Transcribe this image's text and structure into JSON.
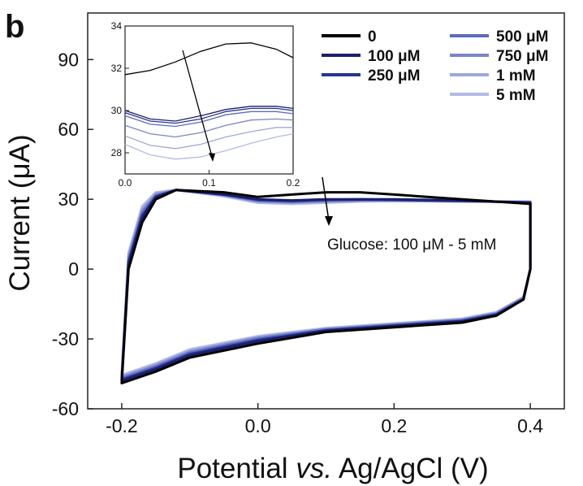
{
  "panel_label": "b",
  "chart_data": {
    "type": "line",
    "main": {
      "xlabel_pre": "Potential ",
      "xlabel_italic": "vs.",
      "xlabel_post": " Ag/AgCl (V)",
      "ylabel": "Current (μA)",
      "xlim": [
        -0.25,
        0.45
      ],
      "ylim": [
        -60,
        110
      ],
      "xticks": [
        -0.2,
        0.0,
        0.2,
        0.4
      ],
      "xticklabels": [
        "-0.2",
        "0.0",
        "0.2",
        "0.4"
      ],
      "yticks": [
        -60,
        -30,
        0,
        30,
        60,
        90
      ],
      "yticklabels": [
        "-60",
        "-30",
        "0",
        "30",
        "60",
        "90"
      ],
      "annotation": "Glucose: 100 μM - 5 mM",
      "legend_placement": "top-right",
      "series": [
        {
          "name": "0",
          "color": "#000000",
          "forward": [
            [
              -0.2,
              -49
            ],
            [
              -0.19,
              0
            ],
            [
              -0.17,
              20
            ],
            [
              -0.15,
              30
            ],
            [
              -0.12,
              34
            ],
            [
              -0.05,
              33
            ],
            [
              0.0,
              31
            ],
            [
              0.05,
              32
            ],
            [
              0.1,
              33
            ],
            [
              0.15,
              33
            ],
            [
              0.2,
              32
            ],
            [
              0.3,
              30
            ],
            [
              0.4,
              28
            ]
          ],
          "reverse": [
            [
              0.4,
              28
            ],
            [
              0.4,
              0
            ],
            [
              0.39,
              -13
            ],
            [
              0.35,
              -20
            ],
            [
              0.3,
              -23
            ],
            [
              0.2,
              -25
            ],
            [
              0.1,
              -27
            ],
            [
              0.0,
              -32
            ],
            [
              -0.1,
              -38
            ],
            [
              -0.15,
              -44
            ],
            [
              -0.2,
              -49
            ]
          ]
        },
        {
          "name": "100 μM",
          "color": "#1a1f6e",
          "forward": [
            [
              -0.2,
              -48
            ],
            [
              -0.19,
              2
            ],
            [
              -0.17,
              22
            ],
            [
              -0.15,
              31
            ],
            [
              -0.12,
              34
            ],
            [
              -0.05,
              32
            ],
            [
              0.0,
              30
            ],
            [
              0.05,
              29.5
            ],
            [
              0.1,
              30
            ],
            [
              0.15,
              30
            ],
            [
              0.2,
              30
            ],
            [
              0.3,
              29.5
            ],
            [
              0.4,
              28.5
            ]
          ],
          "reverse": [
            [
              0.4,
              28.5
            ],
            [
              0.4,
              0
            ],
            [
              0.39,
              -13
            ],
            [
              0.35,
              -20
            ],
            [
              0.3,
              -22.5
            ],
            [
              0.2,
              -24.5
            ],
            [
              0.1,
              -26.5
            ],
            [
              0.0,
              -31
            ],
            [
              -0.1,
              -37
            ],
            [
              -0.15,
              -43
            ],
            [
              -0.2,
              -48
            ]
          ]
        },
        {
          "name": "250 μM",
          "color": "#283593",
          "forward": [
            [
              -0.2,
              -47.5
            ],
            [
              -0.19,
              3
            ],
            [
              -0.17,
              23
            ],
            [
              -0.15,
              31
            ],
            [
              -0.12,
              34
            ],
            [
              -0.05,
              32
            ],
            [
              0.0,
              29.8
            ],
            [
              0.05,
              29.3
            ],
            [
              0.1,
              29.8
            ],
            [
              0.15,
              30
            ],
            [
              0.2,
              29.8
            ],
            [
              0.3,
              29.3
            ],
            [
              0.4,
              28.6
            ]
          ],
          "reverse": [
            [
              0.4,
              28.6
            ],
            [
              0.4,
              0
            ],
            [
              0.39,
              -13
            ],
            [
              0.35,
              -19.5
            ],
            [
              0.3,
              -22.3
            ],
            [
              0.2,
              -24.3
            ],
            [
              0.1,
              -26.3
            ],
            [
              0.0,
              -30.5
            ],
            [
              -0.1,
              -36.5
            ],
            [
              -0.15,
              -42.5
            ],
            [
              -0.2,
              -47.5
            ]
          ]
        },
        {
          "name": "500 μM",
          "color": "#5c6bc0",
          "forward": [
            [
              -0.2,
              -47
            ],
            [
              -0.19,
              4
            ],
            [
              -0.17,
              24
            ],
            [
              -0.15,
              31.5
            ],
            [
              -0.12,
              34
            ],
            [
              -0.05,
              32
            ],
            [
              0.0,
              29.5
            ],
            [
              0.05,
              29
            ],
            [
              0.1,
              29.5
            ],
            [
              0.15,
              29.8
            ],
            [
              0.2,
              29.6
            ],
            [
              0.3,
              29.2
            ],
            [
              0.4,
              28.7
            ]
          ],
          "reverse": [
            [
              0.4,
              28.7
            ],
            [
              0.4,
              0
            ],
            [
              0.39,
              -12.5
            ],
            [
              0.35,
              -19.3
            ],
            [
              0.3,
              -22
            ],
            [
              0.2,
              -24
            ],
            [
              0.1,
              -26
            ],
            [
              0.0,
              -30
            ],
            [
              -0.1,
              -36
            ],
            [
              -0.15,
              -42
            ],
            [
              -0.2,
              -47
            ]
          ]
        },
        {
          "name": "750 μM",
          "color": "#7986cb",
          "forward": [
            [
              -0.2,
              -46.5
            ],
            [
              -0.19,
              5
            ],
            [
              -0.17,
              25
            ],
            [
              -0.15,
              32
            ],
            [
              -0.12,
              34
            ],
            [
              -0.05,
              31.8
            ],
            [
              0.0,
              29.2
            ],
            [
              0.05,
              28.7
            ],
            [
              0.1,
              29.2
            ],
            [
              0.15,
              29.5
            ],
            [
              0.2,
              29.5
            ],
            [
              0.3,
              29.1
            ],
            [
              0.4,
              28.8
            ]
          ],
          "reverse": [
            [
              0.4,
              28.8
            ],
            [
              0.4,
              0
            ],
            [
              0.39,
              -12.5
            ],
            [
              0.35,
              -19
            ],
            [
              0.3,
              -21.8
            ],
            [
              0.2,
              -23.8
            ],
            [
              0.1,
              -25.8
            ],
            [
              0.0,
              -29.6
            ],
            [
              -0.1,
              -35.5
            ],
            [
              -0.15,
              -41.5
            ],
            [
              -0.2,
              -46.5
            ]
          ]
        },
        {
          "name": "1 mM",
          "color": "#9fa8da",
          "forward": [
            [
              -0.2,
              -46
            ],
            [
              -0.19,
              6
            ],
            [
              -0.17,
              26
            ],
            [
              -0.15,
              32.5
            ],
            [
              -0.12,
              34
            ],
            [
              -0.05,
              31.6
            ],
            [
              0.0,
              28.9
            ],
            [
              0.05,
              28.4
            ],
            [
              0.1,
              28.9
            ],
            [
              0.15,
              29.3
            ],
            [
              0.2,
              29.4
            ],
            [
              0.3,
              29.1
            ],
            [
              0.4,
              28.9
            ]
          ],
          "reverse": [
            [
              0.4,
              28.9
            ],
            [
              0.4,
              0
            ],
            [
              0.39,
              -12
            ],
            [
              0.35,
              -18.8
            ],
            [
              0.3,
              -21.6
            ],
            [
              0.2,
              -23.6
            ],
            [
              0.1,
              -25.6
            ],
            [
              0.0,
              -29.2
            ],
            [
              -0.1,
              -35
            ],
            [
              -0.15,
              -41
            ],
            [
              -0.2,
              -46
            ]
          ]
        },
        {
          "name": "5 mM",
          "color": "#b3bbe6",
          "forward": [
            [
              -0.2,
              -45.5
            ],
            [
              -0.19,
              7
            ],
            [
              -0.17,
              27
            ],
            [
              -0.15,
              33
            ],
            [
              -0.12,
              34
            ],
            [
              -0.05,
              31.3
            ],
            [
              0.0,
              28.5
            ],
            [
              0.05,
              28
            ],
            [
              0.1,
              28.5
            ],
            [
              0.15,
              29
            ],
            [
              0.2,
              29.2
            ],
            [
              0.3,
              29
            ],
            [
              0.4,
              29
            ]
          ],
          "reverse": [
            [
              0.4,
              29
            ],
            [
              0.4,
              0
            ],
            [
              0.39,
              -12
            ],
            [
              0.35,
              -18.5
            ],
            [
              0.3,
              -21.3
            ],
            [
              0.2,
              -23.3
            ],
            [
              0.1,
              -25.3
            ],
            [
              0.0,
              -28.8
            ],
            [
              -0.1,
              -34.5
            ],
            [
              -0.15,
              -40.5
            ],
            [
              -0.2,
              -45.5
            ]
          ]
        }
      ]
    },
    "inset": {
      "xlim": [
        0.0,
        0.2
      ],
      "ylim": [
        27,
        34
      ],
      "xticks": [
        0.0,
        0.1,
        0.2
      ],
      "xticklabels": [
        "0.0",
        "0.1",
        "0.2"
      ],
      "yticks": [
        28,
        30,
        32,
        34
      ],
      "yticklabels": [
        "28",
        "30",
        "32",
        "34"
      ],
      "series": [
        {
          "name": "0",
          "color": "#000000",
          "points": [
            [
              0.0,
              31.7
            ],
            [
              0.03,
              31.9
            ],
            [
              0.06,
              32.3
            ],
            [
              0.09,
              32.8
            ],
            [
              0.12,
              33.15
            ],
            [
              0.15,
              33.2
            ],
            [
              0.18,
              32.9
            ],
            [
              0.2,
              32.5
            ]
          ]
        },
        {
          "name": "100 μM",
          "color": "#1a1f6e",
          "points": [
            [
              0.0,
              30.0
            ],
            [
              0.03,
              29.6
            ],
            [
              0.06,
              29.5
            ],
            [
              0.09,
              29.75
            ],
            [
              0.12,
              30.05
            ],
            [
              0.15,
              30.2
            ],
            [
              0.18,
              30.2
            ],
            [
              0.2,
              30.1
            ]
          ]
        },
        {
          "name": "250 μM",
          "color": "#283593",
          "points": [
            [
              0.0,
              29.9
            ],
            [
              0.03,
              29.5
            ],
            [
              0.06,
              29.4
            ],
            [
              0.09,
              29.6
            ],
            [
              0.12,
              29.95
            ],
            [
              0.15,
              30.1
            ],
            [
              0.18,
              30.1
            ],
            [
              0.2,
              30.0
            ]
          ]
        },
        {
          "name": "500 μM",
          "color": "#5c6bc0",
          "points": [
            [
              0.0,
              29.75
            ],
            [
              0.03,
              29.35
            ],
            [
              0.06,
              29.25
            ],
            [
              0.09,
              29.45
            ],
            [
              0.12,
              29.8
            ],
            [
              0.15,
              29.95
            ],
            [
              0.18,
              29.95
            ],
            [
              0.2,
              29.85
            ]
          ]
        },
        {
          "name": "750 μM",
          "color": "#7986cb",
          "points": [
            [
              0.0,
              29.3
            ],
            [
              0.03,
              28.9
            ],
            [
              0.06,
              28.75
            ],
            [
              0.09,
              28.95
            ],
            [
              0.12,
              29.3
            ],
            [
              0.15,
              29.55
            ],
            [
              0.18,
              29.6
            ],
            [
              0.2,
              29.55
            ]
          ]
        },
        {
          "name": "1 mM",
          "color": "#9fa8da",
          "points": [
            [
              0.0,
              28.8
            ],
            [
              0.03,
              28.35
            ],
            [
              0.06,
              28.2
            ],
            [
              0.09,
              28.4
            ],
            [
              0.12,
              28.75
            ],
            [
              0.15,
              29.0
            ],
            [
              0.18,
              29.2
            ],
            [
              0.2,
              29.2
            ]
          ]
        },
        {
          "name": "5 mM",
          "color": "#b3bbe6",
          "points": [
            [
              0.0,
              28.4
            ],
            [
              0.03,
              27.9
            ],
            [
              0.06,
              27.7
            ],
            [
              0.09,
              27.8
            ],
            [
              0.12,
              28.1
            ],
            [
              0.15,
              28.45
            ],
            [
              0.18,
              28.75
            ],
            [
              0.2,
              28.9
            ]
          ]
        }
      ]
    }
  }
}
